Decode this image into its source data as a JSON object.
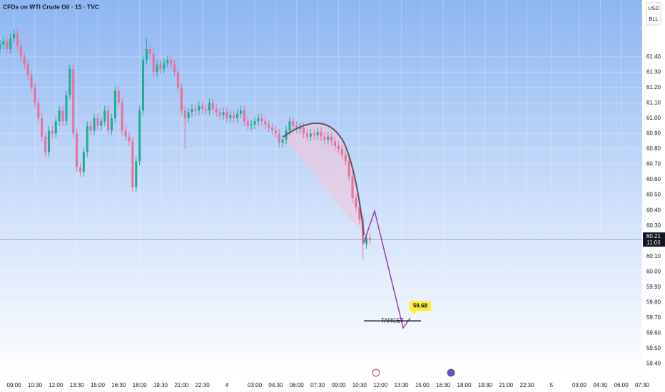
{
  "chart_data": {
    "type": "candlestick",
    "title": "CFDs on WTI Crude Oil · 15 · TVC",
    "currency": "USD",
    "unit": "BLL",
    "up_color": "#22ab94",
    "down_color": "#e9709a",
    "grid": true,
    "xlim": [
      -4,
      180
    ],
    "ylim": [
      59.31,
      61.77
    ],
    "xticks": [
      {
        "value": 0,
        "label": "09:00"
      },
      {
        "value": 6,
        "label": "10:30"
      },
      {
        "value": 12,
        "label": "12:00"
      },
      {
        "value": 18,
        "label": "13:30"
      },
      {
        "value": 24,
        "label": "15:00"
      },
      {
        "value": 30,
        "label": "16:30"
      },
      {
        "value": 36,
        "label": "18:00"
      },
      {
        "value": 42,
        "label": "19:30"
      },
      {
        "value": 48,
        "label": "21:00"
      },
      {
        "value": 54,
        "label": "22:30"
      },
      {
        "value": 61,
        "label": "4"
      },
      {
        "value": 69,
        "label": "03:00"
      },
      {
        "value": 75,
        "label": "04:30"
      },
      {
        "value": 81,
        "label": "06:00"
      },
      {
        "value": 87,
        "label": "07:30"
      },
      {
        "value": 93,
        "label": "09:00"
      },
      {
        "value": 99,
        "label": "10:30"
      },
      {
        "value": 105,
        "label": "12:00"
      },
      {
        "value": 111,
        "label": "13:30"
      },
      {
        "value": 117,
        "label": "15:00"
      },
      {
        "value": 123,
        "label": "16:30"
      },
      {
        "value": 129,
        "label": "18:00"
      },
      {
        "value": 135,
        "label": "19:30"
      },
      {
        "value": 141,
        "label": "21:00"
      },
      {
        "value": 147,
        "label": "22:30"
      },
      {
        "value": 154,
        "label": "5"
      },
      {
        "value": 162,
        "label": "03:00"
      },
      {
        "value": 168,
        "label": "04:30"
      },
      {
        "value": 174,
        "label": "06:00"
      },
      {
        "value": 180,
        "label": "07:30"
      }
    ],
    "yticks": [
      {
        "value": 59.4,
        "label": "59.40"
      },
      {
        "value": 59.5,
        "label": "59.50"
      },
      {
        "value": 59.6,
        "label": "59.60"
      },
      {
        "value": 59.7,
        "label": "59.70"
      },
      {
        "value": 59.8,
        "label": "59.80"
      },
      {
        "value": 59.9,
        "label": "59.90"
      },
      {
        "value": 60.0,
        "label": "60.00"
      },
      {
        "value": 60.1,
        "label": "60.10"
      },
      {
        "value": 60.2,
        "label": "60.20"
      },
      {
        "value": 60.3,
        "label": "60.30"
      },
      {
        "value": 60.4,
        "label": "60.40"
      },
      {
        "value": 60.5,
        "label": "60.50"
      },
      {
        "value": 60.6,
        "label": "60.60"
      },
      {
        "value": 60.7,
        "label": "60.70"
      },
      {
        "value": 60.8,
        "label": "60.80"
      },
      {
        "value": 60.9,
        "label": "60.90"
      },
      {
        "value": 61.0,
        "label": "61.00"
      },
      {
        "value": 61.1,
        "label": "61.10"
      },
      {
        "value": 61.2,
        "label": "61.20"
      },
      {
        "value": 61.3,
        "label": "61.30"
      },
      {
        "value": 61.4,
        "label": "61.40"
      }
    ],
    "candles": [
      [
        -4,
        61.45,
        61.51,
        61.42,
        61.48
      ],
      [
        -3,
        61.48,
        61.53,
        61.45,
        61.5
      ],
      [
        -2,
        61.5,
        61.53,
        61.42,
        61.45
      ],
      [
        -1,
        61.45,
        61.55,
        61.42,
        61.52
      ],
      [
        0,
        61.52,
        61.58,
        61.49,
        61.55
      ],
      [
        1,
        61.55,
        61.58,
        61.44,
        61.47
      ],
      [
        2,
        61.47,
        61.5,
        61.37,
        61.4
      ],
      [
        3,
        61.4,
        61.43,
        61.32,
        61.35
      ],
      [
        4,
        61.35,
        61.38,
        61.25,
        61.28
      ],
      [
        5,
        61.28,
        61.31,
        61.17,
        61.2
      ],
      [
        6,
        61.2,
        61.23,
        61.07,
        61.1
      ],
      [
        7,
        61.1,
        61.13,
        60.97,
        61.0
      ],
      [
        8,
        61.0,
        61.03,
        60.85,
        60.88
      ],
      [
        9,
        60.88,
        60.91,
        60.75,
        60.78
      ],
      [
        10,
        60.78,
        60.95,
        60.75,
        60.92
      ],
      [
        11,
        60.92,
        60.95,
        60.87,
        60.9
      ],
      [
        12,
        60.9,
        61.01,
        60.87,
        60.98
      ],
      [
        13,
        60.98,
        61.08,
        60.95,
        61.05
      ],
      [
        14,
        61.05,
        61.08,
        60.95,
        60.98
      ],
      [
        15,
        60.98,
        61.18,
        60.95,
        61.15
      ],
      [
        16,
        61.15,
        61.35,
        61.12,
        61.32
      ],
      [
        17,
        61.32,
        61.35,
        60.87,
        60.9
      ],
      [
        18,
        60.9,
        60.93,
        60.65,
        60.68
      ],
      [
        19,
        60.68,
        60.71,
        60.62,
        60.65
      ],
      [
        20,
        60.65,
        60.81,
        60.62,
        60.78
      ],
      [
        21,
        60.78,
        60.98,
        60.75,
        60.95
      ],
      [
        22,
        60.95,
        60.98,
        60.89,
        60.92
      ],
      [
        23,
        60.92,
        61.03,
        60.89,
        61.0
      ],
      [
        24,
        61.0,
        61.03,
        60.92,
        60.95
      ],
      [
        25,
        60.95,
        61.01,
        60.92,
        60.98
      ],
      [
        26,
        60.98,
        61.08,
        60.95,
        61.05
      ],
      [
        27,
        61.05,
        61.08,
        60.89,
        60.92
      ],
      [
        28,
        60.92,
        61.03,
        60.89,
        61.0
      ],
      [
        29,
        61.0,
        61.21,
        60.97,
        61.18
      ],
      [
        30,
        61.18,
        61.21,
        61.07,
        61.1
      ],
      [
        31,
        61.1,
        61.13,
        60.89,
        60.92
      ],
      [
        32,
        60.92,
        60.95,
        60.85,
        60.88
      ],
      [
        33,
        60.88,
        60.91,
        60.82,
        60.85
      ],
      [
        34,
        60.85,
        60.88,
        60.52,
        60.55
      ],
      [
        35,
        60.55,
        60.75,
        60.52,
        60.72
      ],
      [
        36,
        60.72,
        61.08,
        60.69,
        61.05
      ],
      [
        37,
        61.05,
        61.41,
        61.02,
        61.38
      ],
      [
        38,
        61.38,
        61.52,
        61.35,
        61.45
      ],
      [
        39,
        61.45,
        61.48,
        61.39,
        61.42
      ],
      [
        40,
        61.42,
        61.45,
        61.27,
        61.3
      ],
      [
        41,
        61.3,
        61.38,
        61.27,
        61.35
      ],
      [
        42,
        61.35,
        61.38,
        61.29,
        61.32
      ],
      [
        43,
        61.32,
        61.39,
        61.29,
        61.36
      ],
      [
        44,
        61.36,
        61.41,
        61.33,
        61.38
      ],
      [
        45,
        61.38,
        61.41,
        61.32,
        61.35
      ],
      [
        46,
        61.35,
        61.38,
        61.27,
        61.3
      ],
      [
        47,
        61.3,
        61.33,
        61.17,
        61.2
      ],
      [
        48,
        61.2,
        61.23,
        61.02,
        61.05
      ],
      [
        49,
        61.05,
        61.08,
        60.8,
        61.0
      ],
      [
        50,
        61.0,
        61.07,
        60.97,
        61.04
      ],
      [
        51,
        61.04,
        61.09,
        61.01,
        61.06
      ],
      [
        52,
        61.06,
        61.09,
        61.02,
        61.05
      ],
      [
        53,
        61.05,
        61.11,
        61.02,
        61.08
      ],
      [
        54,
        61.08,
        61.11,
        61.03,
        61.06
      ],
      [
        55,
        61.06,
        61.09,
        61.02,
        61.05
      ],
      [
        56,
        61.05,
        61.13,
        61.02,
        61.1
      ],
      [
        57,
        61.1,
        61.13,
        61.03,
        61.06
      ],
      [
        58,
        61.06,
        61.09,
        61.01,
        61.04
      ],
      [
        59,
        61.04,
        61.07,
        60.99,
        61.02
      ],
      [
        60,
        61.02,
        61.07,
        60.99,
        61.04
      ],
      [
        61,
        61.04,
        61.07,
        60.97,
        61.0
      ],
      [
        62,
        61.0,
        61.05,
        60.97,
        61.02
      ],
      [
        63,
        61.02,
        61.05,
        60.97,
        61.0
      ],
      [
        64,
        61.0,
        61.06,
        60.97,
        61.03
      ],
      [
        65,
        61.03,
        61.08,
        61.0,
        61.05
      ],
      [
        66,
        61.05,
        61.08,
        60.95,
        60.98
      ],
      [
        67,
        60.98,
        61.01,
        60.92,
        60.95
      ],
      [
        68,
        60.95,
        60.99,
        60.92,
        60.96
      ],
      [
        69,
        60.96,
        61.01,
        60.93,
        60.98
      ],
      [
        70,
        60.98,
        61.03,
        60.95,
        61.0
      ],
      [
        71,
        61.0,
        61.03,
        60.95,
        60.98
      ],
      [
        72,
        60.98,
        61.01,
        60.93,
        60.96
      ],
      [
        73,
        60.96,
        60.99,
        60.91,
        60.94
      ],
      [
        74,
        60.94,
        60.97,
        60.89,
        60.92
      ],
      [
        75,
        60.92,
        60.95,
        60.87,
        60.9
      ],
      [
        76,
        60.9,
        60.93,
        60.81,
        60.84
      ],
      [
        77,
        60.84,
        60.89,
        60.81,
        60.86
      ],
      [
        78,
        60.86,
        60.95,
        60.83,
        60.92
      ],
      [
        79,
        60.92,
        61.01,
        60.89,
        60.98
      ],
      [
        80,
        60.98,
        61.01,
        60.92,
        60.95
      ],
      [
        81,
        60.95,
        60.98,
        60.9,
        60.93
      ],
      [
        82,
        60.93,
        60.97,
        60.9,
        60.94
      ],
      [
        83,
        60.94,
        60.97,
        60.87,
        60.9
      ],
      [
        84,
        60.9,
        60.93,
        60.85,
        60.88
      ],
      [
        85,
        60.88,
        60.93,
        60.85,
        60.9
      ],
      [
        86,
        60.9,
        60.93,
        60.86,
        60.89
      ],
      [
        87,
        60.89,
        60.94,
        60.86,
        60.91
      ],
      [
        88,
        60.91,
        60.94,
        60.85,
        60.88
      ],
      [
        89,
        60.88,
        60.91,
        60.83,
        60.86
      ],
      [
        90,
        60.86,
        60.91,
        60.83,
        60.88
      ],
      [
        91,
        60.88,
        60.91,
        60.82,
        60.85
      ],
      [
        92,
        60.85,
        60.88,
        60.79,
        60.82
      ],
      [
        93,
        60.82,
        60.85,
        60.77,
        60.8
      ],
      [
        94,
        60.8,
        60.83,
        60.73,
        60.76
      ],
      [
        95,
        60.76,
        60.79,
        60.69,
        60.72
      ],
      [
        96,
        60.72,
        60.75,
        60.59,
        60.62
      ],
      [
        97,
        60.62,
        60.65,
        60.45,
        60.48
      ],
      [
        98,
        60.48,
        60.51,
        60.39,
        60.42
      ],
      [
        99,
        60.42,
        60.45,
        60.31,
        60.34
      ],
      [
        100,
        60.34,
        60.37,
        60.08,
        60.18
      ],
      [
        101,
        60.18,
        60.25,
        60.15,
        60.22
      ],
      [
        102,
        60.22,
        60.25,
        60.18,
        60.21
      ]
    ],
    "last_price": 60.21,
    "countdown": "11:09",
    "target": {
      "label": "TARGET",
      "value": 59.68
    }
  }
}
